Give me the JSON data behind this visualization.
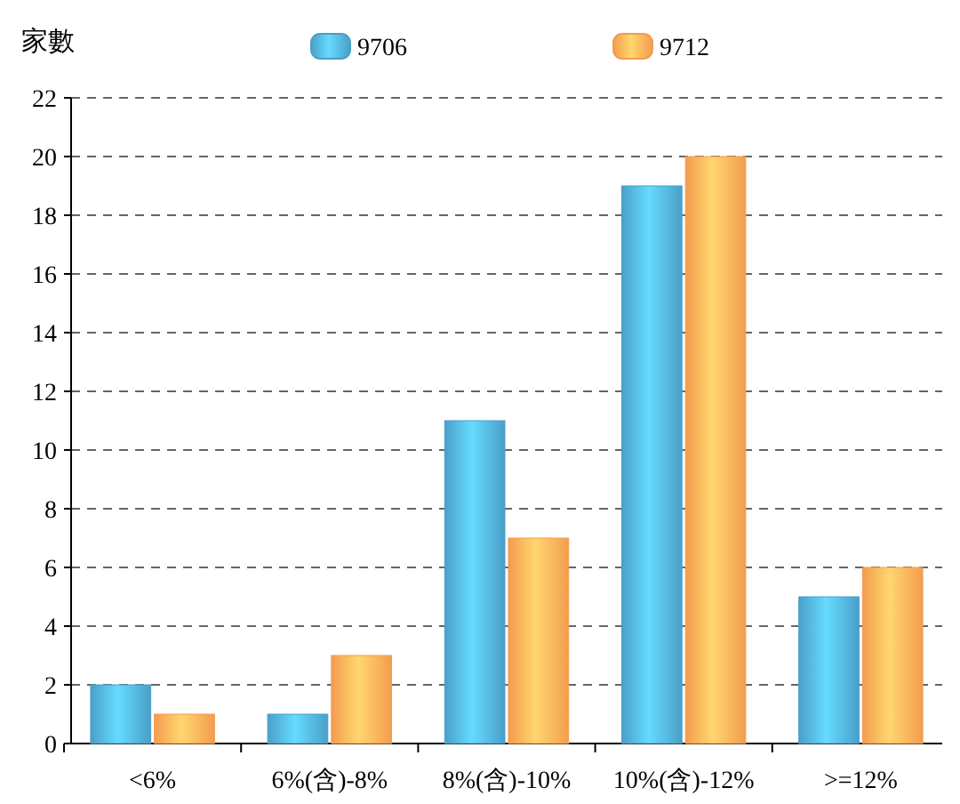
{
  "chart_data": {
    "type": "bar",
    "ylabel": "家數",
    "categories": [
      "<6%",
      "6%(含)-8%",
      "8%(含)-10%",
      "10%(含)-12%",
      ">=12%"
    ],
    "series": [
      {
        "name": "9706",
        "color": "#4a9fc8",
        "values": [
          2,
          1,
          11,
          19,
          5
        ]
      },
      {
        "name": "9712",
        "color": "#f39c4f",
        "values": [
          1,
          3,
          7,
          20,
          6
        ]
      }
    ],
    "ylim": [
      0,
      22
    ],
    "yticks": [
      0,
      2,
      4,
      6,
      8,
      10,
      12,
      14,
      16,
      18,
      20,
      22
    ],
    "grid": "y",
    "legend": "top"
  }
}
